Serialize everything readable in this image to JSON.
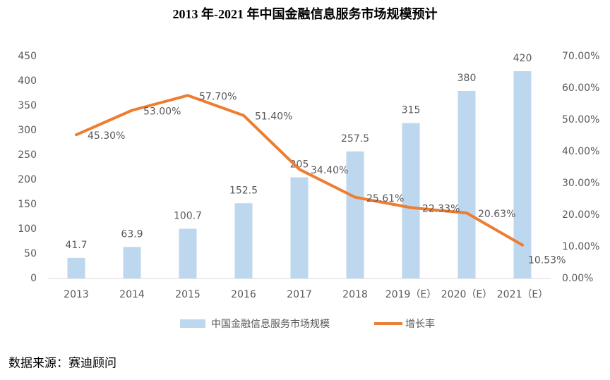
{
  "chart_data": {
    "type": "combo",
    "title": "2013 年-2021 年中国金融信息服务市场规模预计",
    "categories": [
      "2013",
      "2014",
      "2015",
      "2016",
      "2017",
      "2018",
      "2019（E）",
      "2020（E）",
      "2021（E）"
    ],
    "series": [
      {
        "name": "中国金融信息服务市场规模",
        "type": "bar",
        "color": "#bdd7ee",
        "values": [
          41.7,
          63.9,
          100.7,
          152.5,
          205,
          257.5,
          315,
          380,
          420
        ]
      },
      {
        "name": "增长率",
        "type": "line",
        "color": "#ed7d31",
        "axis": "y2",
        "values": [
          45.3,
          53.0,
          57.7,
          51.4,
          34.4,
          25.61,
          22.33,
          20.63,
          10.53
        ],
        "value_labels": [
          "45.30%",
          "53.00%",
          "57.70%",
          "51.40%",
          "34.40%",
          "25.61%",
          "22.33%",
          "20.63%",
          "10.53%"
        ]
      }
    ],
    "ylim": [
      0,
      450
    ],
    "yticks": [
      0,
      50,
      100,
      150,
      200,
      250,
      300,
      350,
      400,
      450
    ],
    "y2lim": [
      0,
      70
    ],
    "y2ticks": [
      {
        "value": 0,
        "label": "0.00%"
      },
      {
        "value": 10,
        "label": "10.00%"
      },
      {
        "value": 20,
        "label": "20.00%"
      },
      {
        "value": 30,
        "label": "30.00%"
      },
      {
        "value": 40,
        "label": "40.00%"
      },
      {
        "value": 50,
        "label": "50.00%"
      },
      {
        "value": 60,
        "label": "60.00%"
      },
      {
        "value": 70,
        "label": "70.00%"
      }
    ],
    "grid": false,
    "legend": "bottom",
    "source": "数据来源：赛迪顾问"
  }
}
